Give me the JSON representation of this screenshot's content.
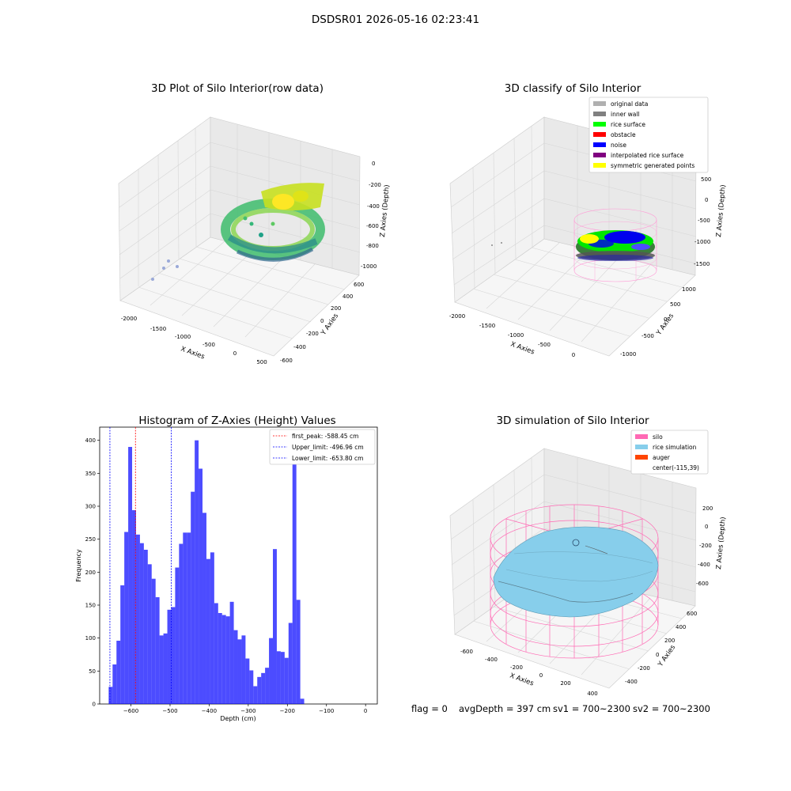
{
  "suptitle": "DSDSR01 2026-05-16 02:23:41",
  "panels": {
    "raw": {
      "title": "3D Plot of Silo Interior(row data)",
      "xlabel": "X Axies",
      "ylabel": "Y Axies",
      "zlabel": "Z Axies (Depth)",
      "xticks": [
        "-2000",
        "-1500",
        "-1000",
        "-500",
        "0",
        "500"
      ],
      "yticks": [
        "-600",
        "-400",
        "-200",
        "0",
        "200",
        "400",
        "600"
      ],
      "zticks": [
        "0",
        "-200",
        "-400",
        "-600",
        "-800",
        "-1000"
      ]
    },
    "classify": {
      "title": "3D classify of Silo Interior",
      "xlabel": "X Axies",
      "ylabel": "Y Axies",
      "zlabel": "Z Axies (Depth)",
      "xticks": [
        "-2000",
        "-1500",
        "-1000",
        "-500",
        "0"
      ],
      "yticks": [
        "-1000",
        "-500",
        "0",
        "500",
        "1000"
      ],
      "zticks": [
        "500",
        "0",
        "-500",
        "-1000",
        "-1500"
      ],
      "legend": [
        {
          "label": "original data",
          "color": "#b0b0b0"
        },
        {
          "label": "inner wall",
          "color": "#808080"
        },
        {
          "label": "rice surface",
          "color": "#00ff00"
        },
        {
          "label": "obstacle",
          "color": "#ff0000"
        },
        {
          "label": "noise",
          "color": "#0000ff"
        },
        {
          "label": "interpolated rice surface",
          "color": "#800080"
        },
        {
          "label": "symmetric generated points",
          "color": "#ffff00"
        }
      ]
    },
    "simulation": {
      "title": "3D simulation of Silo Interior",
      "xlabel": "X Axies",
      "ylabel": "Y Axies",
      "zlabel": "Z Axies (Depth)",
      "xticks": [
        "-600",
        "-400",
        "-200",
        "0",
        "200",
        "400"
      ],
      "yticks": [
        "-400",
        "-200",
        "0",
        "200",
        "400",
        "600"
      ],
      "zticks": [
        "200",
        "0",
        "-200",
        "-400",
        "-600"
      ],
      "legend": [
        {
          "label": "silo",
          "color": "#ff69b4"
        },
        {
          "label": "rice simulation",
          "color": "#87ceeb"
        },
        {
          "label": "auger",
          "color": "#ff4500"
        },
        {
          "label": "center(-115,39)",
          "color": ""
        }
      ]
    }
  },
  "chart_data": {
    "type": "bar",
    "title": "Histogram of Z-Axies (Height) Values",
    "xlabel": "Depth (cm)",
    "ylabel": "Frequency",
    "xlim": [
      -680,
      30
    ],
    "ylim": [
      0,
      420
    ],
    "bar_color": "#0000ff",
    "bin_width": 10,
    "xticks": [
      -600,
      -500,
      -400,
      -300,
      -200,
      -100,
      0
    ],
    "yticks": [
      0,
      50,
      100,
      150,
      200,
      250,
      300,
      350,
      400
    ],
    "bins": [
      {
        "x": -657,
        "value": 26
      },
      {
        "x": -647,
        "value": 60
      },
      {
        "x": -637,
        "value": 96
      },
      {
        "x": -627,
        "value": 180
      },
      {
        "x": -617,
        "value": 261
      },
      {
        "x": -607,
        "value": 390
      },
      {
        "x": -597,
        "value": 294
      },
      {
        "x": -587,
        "value": 257
      },
      {
        "x": -577,
        "value": 244
      },
      {
        "x": -567,
        "value": 234
      },
      {
        "x": -557,
        "value": 212
      },
      {
        "x": -547,
        "value": 190
      },
      {
        "x": -537,
        "value": 162
      },
      {
        "x": -527,
        "value": 104
      },
      {
        "x": -517,
        "value": 107
      },
      {
        "x": -507,
        "value": 143
      },
      {
        "x": -497,
        "value": 147
      },
      {
        "x": -487,
        "value": 207
      },
      {
        "x": -477,
        "value": 243
      },
      {
        "x": -467,
        "value": 260
      },
      {
        "x": -457,
        "value": 260
      },
      {
        "x": -447,
        "value": 322
      },
      {
        "x": -437,
        "value": 400
      },
      {
        "x": -427,
        "value": 357
      },
      {
        "x": -417,
        "value": 290
      },
      {
        "x": -407,
        "value": 220
      },
      {
        "x": -397,
        "value": 230
      },
      {
        "x": -387,
        "value": 153
      },
      {
        "x": -377,
        "value": 138
      },
      {
        "x": -367,
        "value": 135
      },
      {
        "x": -357,
        "value": 133
      },
      {
        "x": -347,
        "value": 155
      },
      {
        "x": -337,
        "value": 112
      },
      {
        "x": -327,
        "value": 98
      },
      {
        "x": -317,
        "value": 104
      },
      {
        "x": -307,
        "value": 69
      },
      {
        "x": -297,
        "value": 51
      },
      {
        "x": -287,
        "value": 27
      },
      {
        "x": -277,
        "value": 41
      },
      {
        "x": -267,
        "value": 47
      },
      {
        "x": -257,
        "value": 55
      },
      {
        "x": -247,
        "value": 100
      },
      {
        "x": -237,
        "value": 235
      },
      {
        "x": -227,
        "value": 80
      },
      {
        "x": -217,
        "value": 79
      },
      {
        "x": -207,
        "value": 70
      },
      {
        "x": -197,
        "value": 123
      },
      {
        "x": -187,
        "value": 380
      },
      {
        "x": -177,
        "value": 158
      },
      {
        "x": -167,
        "value": 8
      }
    ],
    "vlines": [
      {
        "label": "first_peak: -588.45 cm",
        "x": -588.45,
        "color": "#ff0000"
      },
      {
        "label": "Upper_limit: -496.96 cm",
        "x": -496.96,
        "color": "#0000ff"
      },
      {
        "label": "Lower_limit: -653.80 cm",
        "x": -653.8,
        "color": "#0000ff"
      }
    ],
    "legend_position": "top-right"
  },
  "status": {
    "flag": "flag = 0",
    "avg": "avgDepth = 397 cm",
    "sv1": "sv1 = 700~2300",
    "sv2": "sv2 = 700~2300"
  }
}
